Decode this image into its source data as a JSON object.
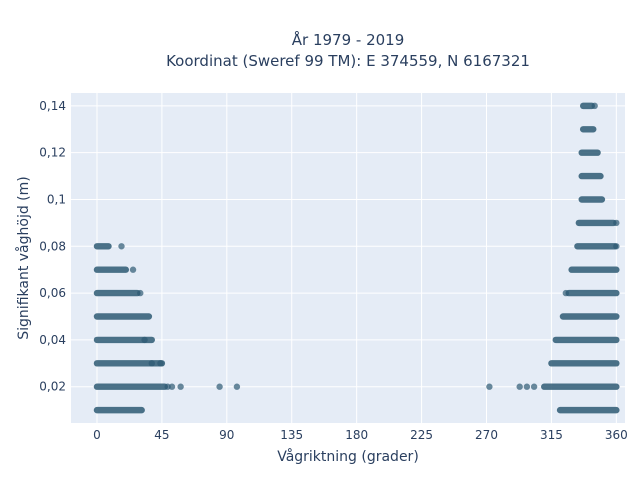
{
  "chart_data": {
    "type": "scatter",
    "title_line1": "År 1979 - 2019",
    "title_line2": "Koordinat (Sweref 99 TM): E 374559, N 6167321",
    "xlabel": "Vågriktning (grader)",
    "ylabel": "Signifikant våghöjd (m)",
    "xlim": [
      -18,
      366
    ],
    "ylim": [
      0.0045,
      0.1455
    ],
    "x_ticks": [
      0,
      45,
      90,
      135,
      180,
      225,
      270,
      315,
      360
    ],
    "x_tick_labels": [
      "0",
      "45",
      "90",
      "135",
      "180",
      "225",
      "270",
      "315",
      "360"
    ],
    "y_ticks": [
      0.02,
      0.04,
      0.06,
      0.08,
      0.1,
      0.12,
      0.14
    ],
    "y_tick_labels": [
      "0,02",
      "0,04",
      "0,06",
      "0,08",
      "0,1",
      "0,12",
      "0,14"
    ],
    "grid": true,
    "marker_color": "#2e5a73",
    "plot_bg_color": "#e5ecf6",
    "series": [
      {
        "segments": [
          {
            "y": 0.01,
            "x_start": 0,
            "x_end": 31
          },
          {
            "y": 0.01,
            "x_start": 321,
            "x_end": 360
          },
          {
            "y": 0.02,
            "x_start": 0,
            "x_end": 47
          },
          {
            "y": 0.02,
            "x_start": 310,
            "x_end": 360
          },
          {
            "y": 0.03,
            "x_start": 0,
            "x_end": 45
          },
          {
            "y": 0.03,
            "x_start": 315,
            "x_end": 360
          },
          {
            "y": 0.04,
            "x_start": 0,
            "x_end": 38
          },
          {
            "y": 0.04,
            "x_start": 318,
            "x_end": 360
          },
          {
            "y": 0.05,
            "x_start": 0,
            "x_end": 36
          },
          {
            "y": 0.05,
            "x_start": 323,
            "x_end": 360
          },
          {
            "y": 0.06,
            "x_start": 0,
            "x_end": 28
          },
          {
            "y": 0.06,
            "x_start": 327,
            "x_end": 360
          },
          {
            "y": 0.07,
            "x_start": 0,
            "x_end": 20
          },
          {
            "y": 0.07,
            "x_start": 329,
            "x_end": 360
          },
          {
            "y": 0.08,
            "x_start": 0,
            "x_end": 8
          },
          {
            "y": 0.08,
            "x_start": 333,
            "x_end": 359
          },
          {
            "y": 0.09,
            "x_start": 334,
            "x_end": 358
          },
          {
            "y": 0.1,
            "x_start": 336,
            "x_end": 350
          },
          {
            "y": 0.11,
            "x_start": 336,
            "x_end": 349
          },
          {
            "y": 0.12,
            "x_start": 336,
            "x_end": 347
          },
          {
            "y": 0.13,
            "x_start": 337,
            "x_end": 344
          },
          {
            "y": 0.14,
            "x_start": 337,
            "x_end": 343
          }
        ],
        "points": [
          {
            "x": 49,
            "y": 0.02
          },
          {
            "x": 52,
            "y": 0.02
          },
          {
            "x": 58,
            "y": 0.02
          },
          {
            "x": 85,
            "y": 0.02
          },
          {
            "x": 97,
            "y": 0.02
          },
          {
            "x": 272,
            "y": 0.02
          },
          {
            "x": 293,
            "y": 0.02
          },
          {
            "x": 298,
            "y": 0.02
          },
          {
            "x": 303,
            "y": 0.02
          },
          {
            "x": 38,
            "y": 0.03
          },
          {
            "x": 44,
            "y": 0.03
          },
          {
            "x": 33,
            "y": 0.04
          },
          {
            "x": 30,
            "y": 0.06
          },
          {
            "x": 25,
            "y": 0.07
          },
          {
            "x": 17,
            "y": 0.08
          },
          {
            "x": 325,
            "y": 0.06
          },
          {
            "x": 345,
            "y": 0.14
          },
          {
            "x": 360,
            "y": 0.08
          },
          {
            "x": 360,
            "y": 0.09
          }
        ]
      }
    ]
  }
}
